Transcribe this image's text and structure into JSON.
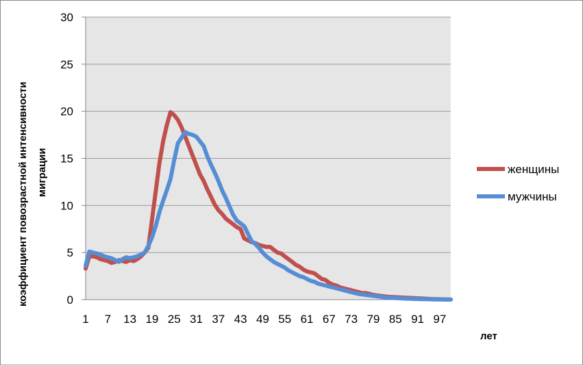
{
  "chart_data": {
    "type": "line",
    "xlabel": "лет",
    "ylabel_lines": [
      "коэффициент повозрастной  интенсивности",
      "миграции"
    ],
    "ylim": [
      0,
      30
    ],
    "yticks": [
      0,
      5,
      10,
      15,
      20,
      25,
      30
    ],
    "xlim": [
      1,
      100
    ],
    "xticks": [
      1,
      7,
      13,
      19,
      25,
      31,
      37,
      43,
      49,
      55,
      61,
      67,
      73,
      79,
      85,
      91,
      97
    ],
    "grid": "horizontal",
    "plot_background": "#e6e6e6",
    "legend_position": "right",
    "series": [
      {
        "name": "женщины",
        "color": "#c0504d",
        "points": [
          [
            1,
            3.3
          ],
          [
            2,
            4.6
          ],
          [
            3,
            4.6
          ],
          [
            4,
            4.5
          ],
          [
            5,
            4.3
          ],
          [
            6,
            4.2
          ],
          [
            7,
            4.1
          ],
          [
            8,
            3.9
          ],
          [
            9,
            4.0
          ],
          [
            10,
            4.2
          ],
          [
            11,
            4.1
          ],
          [
            12,
            4.0
          ],
          [
            13,
            4.2
          ],
          [
            14,
            4.1
          ],
          [
            15,
            4.3
          ],
          [
            16,
            4.6
          ],
          [
            17,
            5.0
          ],
          [
            18,
            5.5
          ],
          [
            19,
            8.5
          ],
          [
            20,
            11.5
          ],
          [
            21,
            14.5
          ],
          [
            22,
            16.8
          ],
          [
            23,
            18.5
          ],
          [
            24,
            19.9
          ],
          [
            25,
            19.6
          ],
          [
            26,
            19.1
          ],
          [
            27,
            18.3
          ],
          [
            28,
            17.3
          ],
          [
            29,
            16.3
          ],
          [
            30,
            15.3
          ],
          [
            31,
            14.3
          ],
          [
            32,
            13.3
          ],
          [
            33,
            12.6
          ],
          [
            34,
            11.7
          ],
          [
            35,
            10.9
          ],
          [
            36,
            10.1
          ],
          [
            37,
            9.5
          ],
          [
            38,
            9.1
          ],
          [
            39,
            8.6
          ],
          [
            40,
            8.3
          ],
          [
            41,
            8.0
          ],
          [
            42,
            7.7
          ],
          [
            43,
            7.5
          ],
          [
            44,
            6.5
          ],
          [
            45,
            6.3
          ],
          [
            46,
            6.1
          ],
          [
            47,
            6.0
          ],
          [
            48,
            5.8
          ],
          [
            49,
            5.7
          ],
          [
            50,
            5.6
          ],
          [
            51,
            5.6
          ],
          [
            52,
            5.3
          ],
          [
            53,
            5.0
          ],
          [
            54,
            4.9
          ],
          [
            55,
            4.6
          ],
          [
            56,
            4.3
          ],
          [
            57,
            4.0
          ],
          [
            58,
            3.7
          ],
          [
            59,
            3.5
          ],
          [
            60,
            3.2
          ],
          [
            61,
            3.0
          ],
          [
            62,
            2.9
          ],
          [
            63,
            2.8
          ],
          [
            64,
            2.5
          ],
          [
            65,
            2.2
          ],
          [
            66,
            2.1
          ],
          [
            67,
            1.8
          ],
          [
            68,
            1.6
          ],
          [
            69,
            1.5
          ],
          [
            70,
            1.3
          ],
          [
            71,
            1.2
          ],
          [
            72,
            1.1
          ],
          [
            73,
            1.0
          ],
          [
            74,
            0.9
          ],
          [
            75,
            0.8
          ],
          [
            76,
            0.7
          ],
          [
            77,
            0.7
          ],
          [
            78,
            0.6
          ],
          [
            79,
            0.5
          ],
          [
            80,
            0.45
          ],
          [
            81,
            0.4
          ],
          [
            82,
            0.35
          ],
          [
            83,
            0.3
          ],
          [
            84,
            0.28
          ],
          [
            85,
            0.26
          ],
          [
            86,
            0.24
          ],
          [
            87,
            0.22
          ],
          [
            88,
            0.2
          ],
          [
            89,
            0.18
          ],
          [
            90,
            0.16
          ],
          [
            91,
            0.14
          ],
          [
            92,
            0.12
          ],
          [
            93,
            0.1
          ],
          [
            94,
            0.08
          ],
          [
            95,
            0.06
          ],
          [
            96,
            0.05
          ],
          [
            97,
            0.04
          ],
          [
            98,
            0.03
          ],
          [
            99,
            0.02
          ],
          [
            100,
            0.02
          ]
        ]
      },
      {
        "name": "мужчины",
        "color": "#558ed5",
        "points": [
          [
            1,
            3.6
          ],
          [
            2,
            5.1
          ],
          [
            3,
            5.0
          ],
          [
            4,
            4.9
          ],
          [
            5,
            4.8
          ],
          [
            6,
            4.6
          ],
          [
            7,
            4.5
          ],
          [
            8,
            4.4
          ],
          [
            9,
            4.2
          ],
          [
            10,
            4.0
          ],
          [
            11,
            4.3
          ],
          [
            12,
            4.5
          ],
          [
            13,
            4.4
          ],
          [
            14,
            4.5
          ],
          [
            15,
            4.6
          ],
          [
            16,
            4.8
          ],
          [
            17,
            5.0
          ],
          [
            18,
            5.7
          ],
          [
            19,
            6.6
          ],
          [
            20,
            7.8
          ],
          [
            21,
            9.3
          ],
          [
            22,
            10.5
          ],
          [
            23,
            11.6
          ],
          [
            24,
            12.8
          ],
          [
            25,
            14.8
          ],
          [
            26,
            16.6
          ],
          [
            27,
            17.2
          ],
          [
            28,
            17.8
          ],
          [
            29,
            17.6
          ],
          [
            30,
            17.5
          ],
          [
            31,
            17.3
          ],
          [
            32,
            16.8
          ],
          [
            33,
            16.3
          ],
          [
            34,
            15.2
          ],
          [
            35,
            14.3
          ],
          [
            36,
            13.5
          ],
          [
            37,
            12.6
          ],
          [
            38,
            11.6
          ],
          [
            39,
            10.8
          ],
          [
            40,
            9.9
          ],
          [
            41,
            9.0
          ],
          [
            42,
            8.4
          ],
          [
            43,
            8.1
          ],
          [
            44,
            7.8
          ],
          [
            45,
            7.0
          ],
          [
            46,
            6.2
          ],
          [
            47,
            5.9
          ],
          [
            48,
            5.5
          ],
          [
            49,
            5.0
          ],
          [
            50,
            4.6
          ],
          [
            51,
            4.3
          ],
          [
            52,
            4.0
          ],
          [
            53,
            3.8
          ],
          [
            54,
            3.6
          ],
          [
            55,
            3.4
          ],
          [
            56,
            3.1
          ],
          [
            57,
            2.9
          ],
          [
            58,
            2.7
          ],
          [
            59,
            2.5
          ],
          [
            60,
            2.4
          ],
          [
            61,
            2.2
          ],
          [
            62,
            2.0
          ],
          [
            63,
            1.9
          ],
          [
            64,
            1.7
          ],
          [
            65,
            1.6
          ],
          [
            66,
            1.5
          ],
          [
            67,
            1.4
          ],
          [
            68,
            1.3
          ],
          [
            69,
            1.2
          ],
          [
            70,
            1.1
          ],
          [
            71,
            1.0
          ],
          [
            72,
            0.9
          ],
          [
            73,
            0.8
          ],
          [
            74,
            0.7
          ],
          [
            75,
            0.6
          ],
          [
            76,
            0.55
          ],
          [
            77,
            0.5
          ],
          [
            78,
            0.45
          ],
          [
            79,
            0.4
          ],
          [
            80,
            0.35
          ],
          [
            81,
            0.3
          ],
          [
            82,
            0.25
          ],
          [
            83,
            0.22
          ],
          [
            84,
            0.2
          ],
          [
            85,
            0.17
          ],
          [
            86,
            0.15
          ],
          [
            87,
            0.13
          ],
          [
            88,
            0.11
          ],
          [
            89,
            0.1
          ],
          [
            90,
            0.08
          ],
          [
            91,
            0.07
          ],
          [
            92,
            0.06
          ],
          [
            93,
            0.05
          ],
          [
            94,
            0.04
          ],
          [
            95,
            0.03
          ],
          [
            96,
            0.03
          ],
          [
            97,
            0.02
          ],
          [
            98,
            0.02
          ],
          [
            99,
            0.01
          ],
          [
            100,
            0.01
          ]
        ]
      }
    ]
  }
}
